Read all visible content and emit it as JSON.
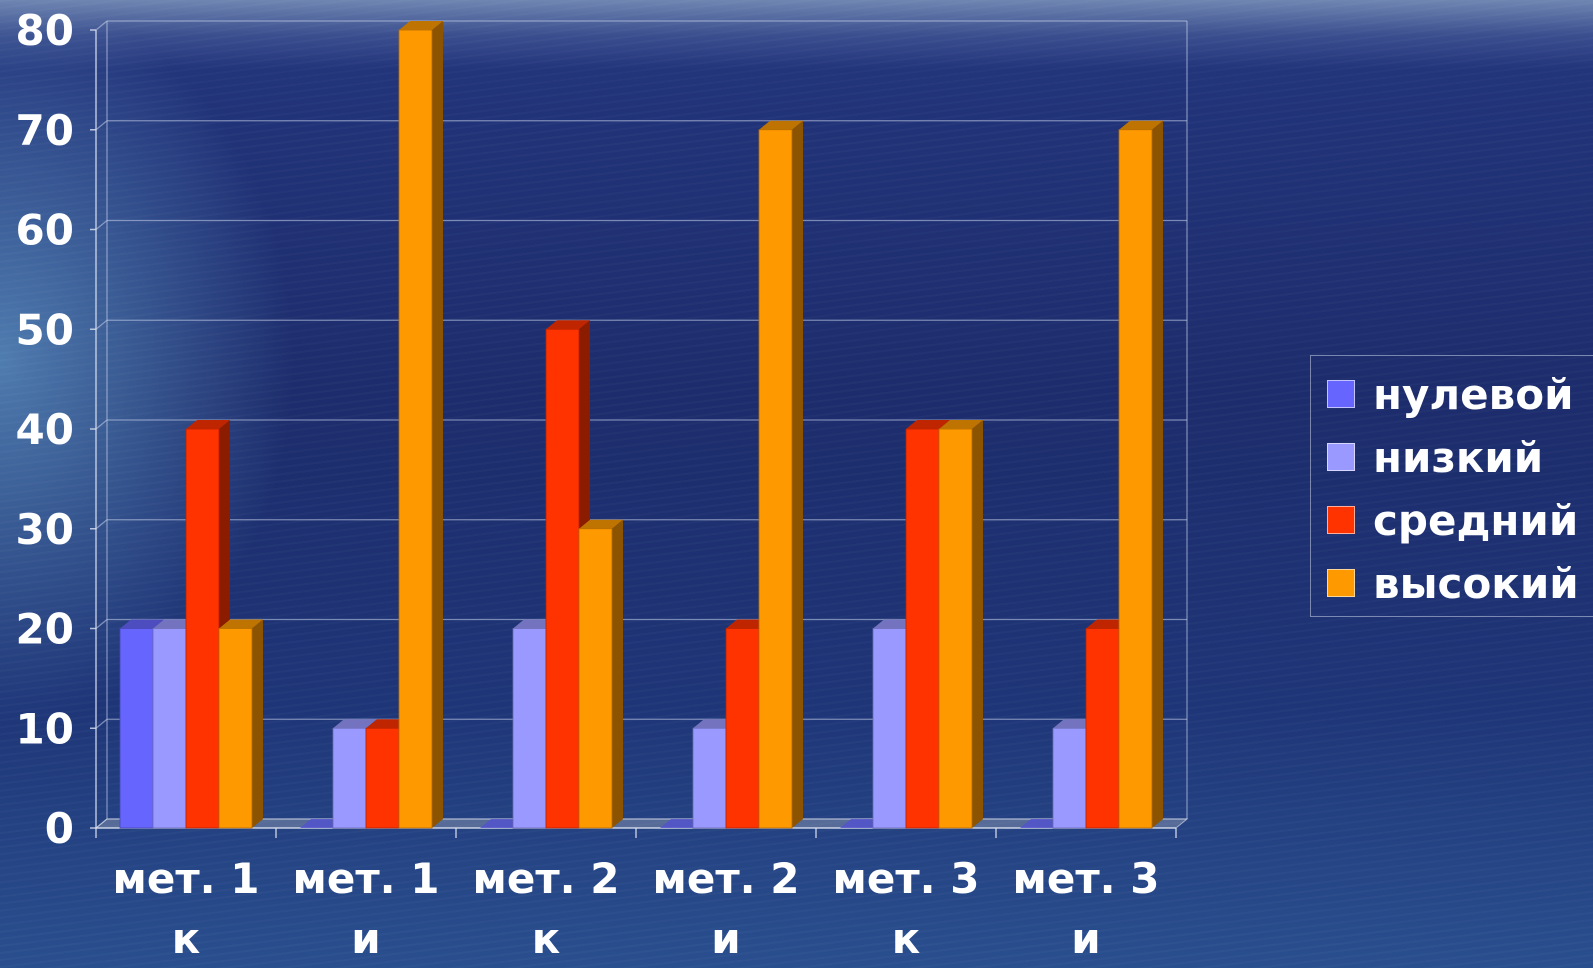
{
  "chart_data": {
    "type": "bar",
    "categories": [
      [
        "мет. 1",
        "к"
      ],
      [
        "мет. 1",
        "и"
      ],
      [
        "мет. 2",
        "к"
      ],
      [
        "мет. 2",
        "и"
      ],
      [
        "мет. 3",
        "к"
      ],
      [
        "мет. 3",
        "и"
      ]
    ],
    "series": [
      {
        "name": "нулевой",
        "color": "#6666ff",
        "values": [
          20,
          0,
          0,
          0,
          0,
          0
        ]
      },
      {
        "name": "низкий",
        "color": "#9999ff",
        "values": [
          20,
          10,
          20,
          10,
          20,
          10
        ]
      },
      {
        "name": "средний",
        "color": "#ff3300",
        "values": [
          40,
          10,
          50,
          20,
          40,
          20
        ]
      },
      {
        "name": "высокий",
        "color": "#ff9900",
        "values": [
          20,
          80,
          30,
          70,
          40,
          70
        ]
      }
    ],
    "ylim": [
      0,
      80
    ],
    "yticks": [
      0,
      10,
      20,
      30,
      40,
      50,
      60,
      70,
      80
    ],
    "grid": true,
    "legend": "right",
    "title": "",
    "xlabel": "",
    "ylabel": ""
  },
  "legend": {
    "items": [
      "нулевой",
      "низкий",
      "средний",
      "высокий"
    ]
  }
}
